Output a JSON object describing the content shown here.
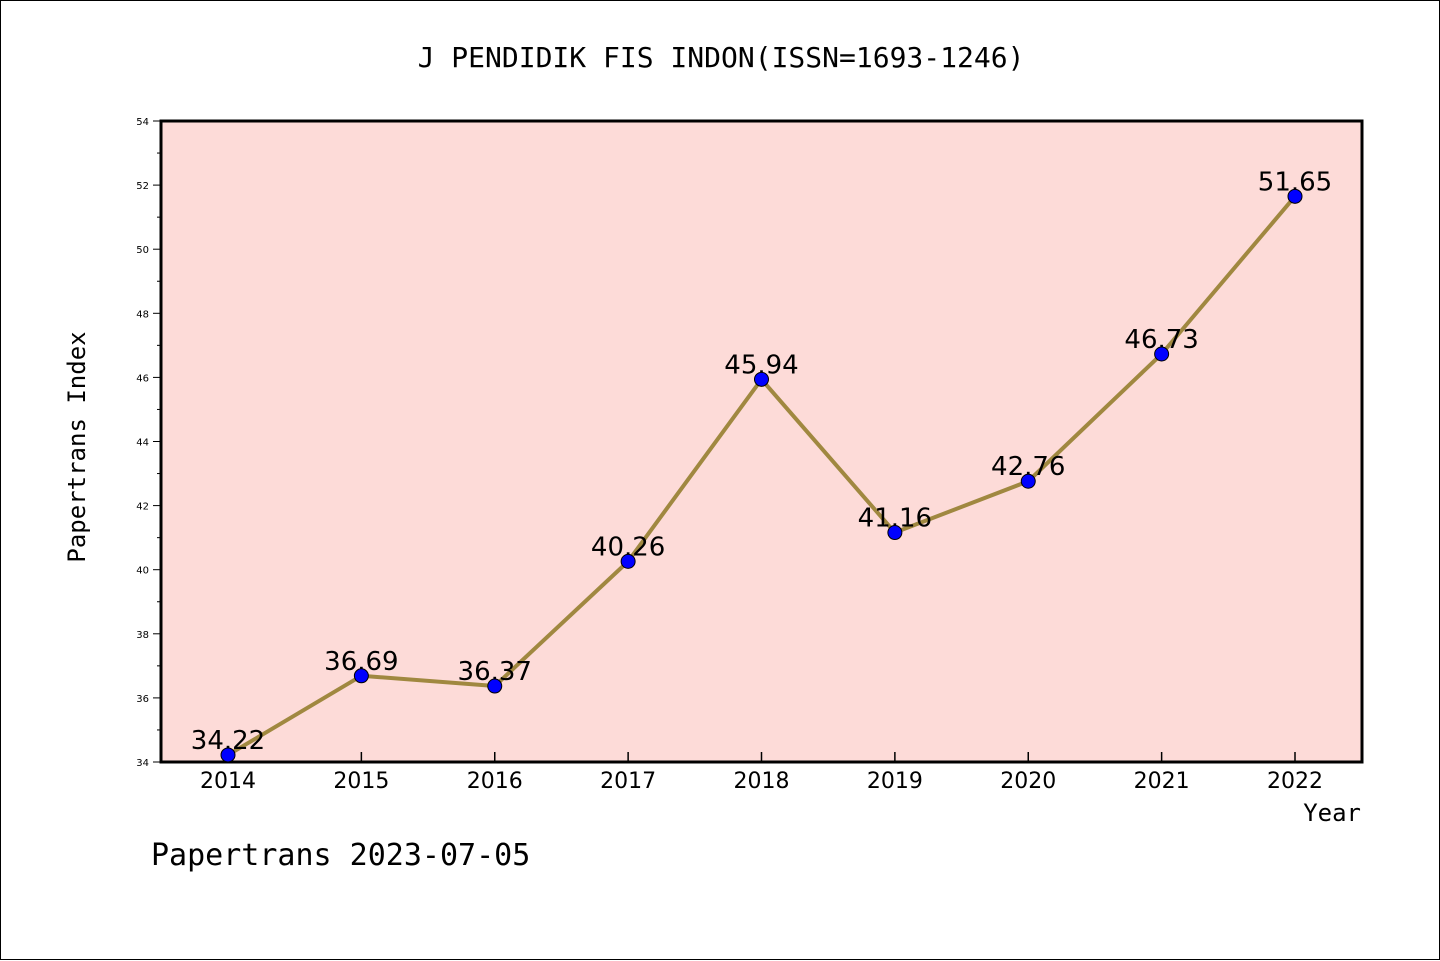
{
  "chart_data": {
    "type": "line",
    "title": "J PENDIDIK FIS INDON(ISSN=1693-1246)",
    "xlabel": "Year",
    "ylabel": "Papertrans Index",
    "categories": [
      "2014",
      "2015",
      "2016",
      "2017",
      "2018",
      "2019",
      "2020",
      "2021",
      "2022"
    ],
    "series": [
      {
        "values": [
          34.22,
          36.69,
          36.37,
          40.26,
          45.94,
          41.16,
          42.76,
          46.73,
          51.65
        ],
        "labels": [
          "34.22",
          "36.69",
          "36.37",
          "40.26",
          "45.94",
          "41.16",
          "42.76",
          "46.73",
          "51.65"
        ]
      }
    ],
    "ylim": [
      34,
      54
    ],
    "yticks": [
      34,
      36,
      38,
      40,
      42,
      44,
      46,
      48,
      50,
      52,
      54
    ],
    "grid": false,
    "colors": {
      "plot_background": "#fddbd8",
      "line": "#a08840",
      "marker": "#0000ff"
    }
  },
  "footer": "Papertrans 2023-07-05"
}
